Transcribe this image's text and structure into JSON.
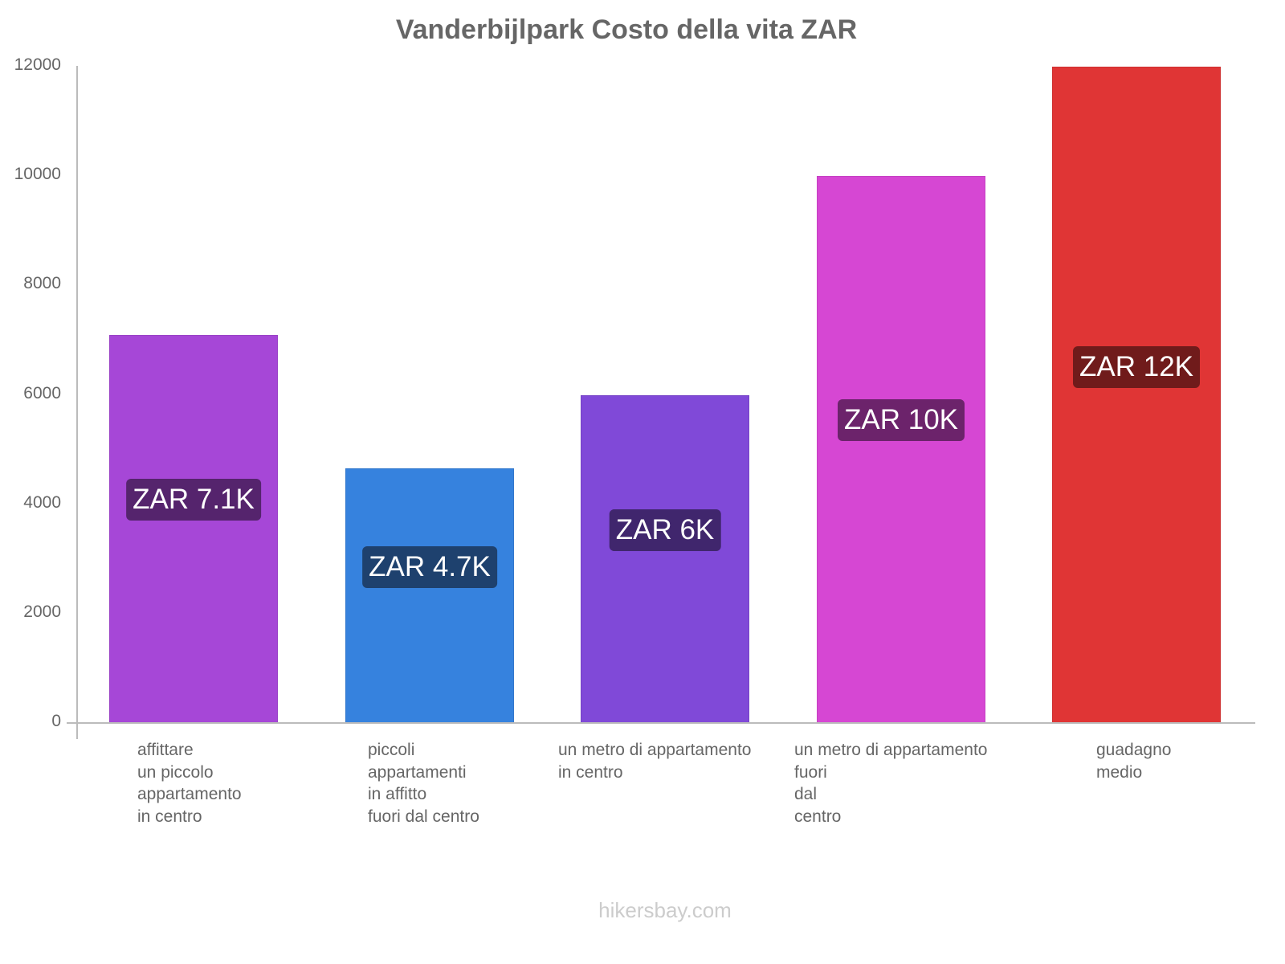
{
  "chart_data": {
    "type": "bar",
    "title": "Vanderbijlpark Costo della vita ZAR",
    "xlabel": "",
    "ylabel": "",
    "ylim": [
      0,
      12000
    ],
    "yticks": [
      "0",
      "2000",
      "4000",
      "6000",
      "8000",
      "10000",
      "12000"
    ],
    "grid": false,
    "legend": null,
    "categories": [
      "affittare un piccolo appartamento in centro",
      "piccoli appartamenti in affitto fuori dal centro",
      "un metro di appartamento in centro",
      "un metro di appartamento fuori dal centro",
      "guadagno medio"
    ],
    "category_label_lines": [
      "affittare\nun piccolo\nappartamento\nin centro",
      "piccoli\nappartamenti\nin affitto\nfuori dal centro",
      "un metro di appartamento\nin centro",
      "un metro di appartamento\nfuori\ndal\ncentro",
      "guadagno\nmedio"
    ],
    "values": [
      7100,
      4650,
      6000,
      10000,
      12000
    ],
    "data_labels": [
      "ZAR 7.1K",
      "ZAR 4.7K",
      "ZAR 6K",
      "ZAR 10K",
      "ZAR 12K"
    ],
    "colors": [
      "#a647d7",
      "#3682de",
      "#8049d8",
      "#d647d3",
      "#e03535"
    ],
    "label_colors": [
      "#55246d",
      "#1e416e",
      "#40266d",
      "#6c236b",
      "#701b1b"
    ]
  },
  "watermark": "hikersbay.com"
}
